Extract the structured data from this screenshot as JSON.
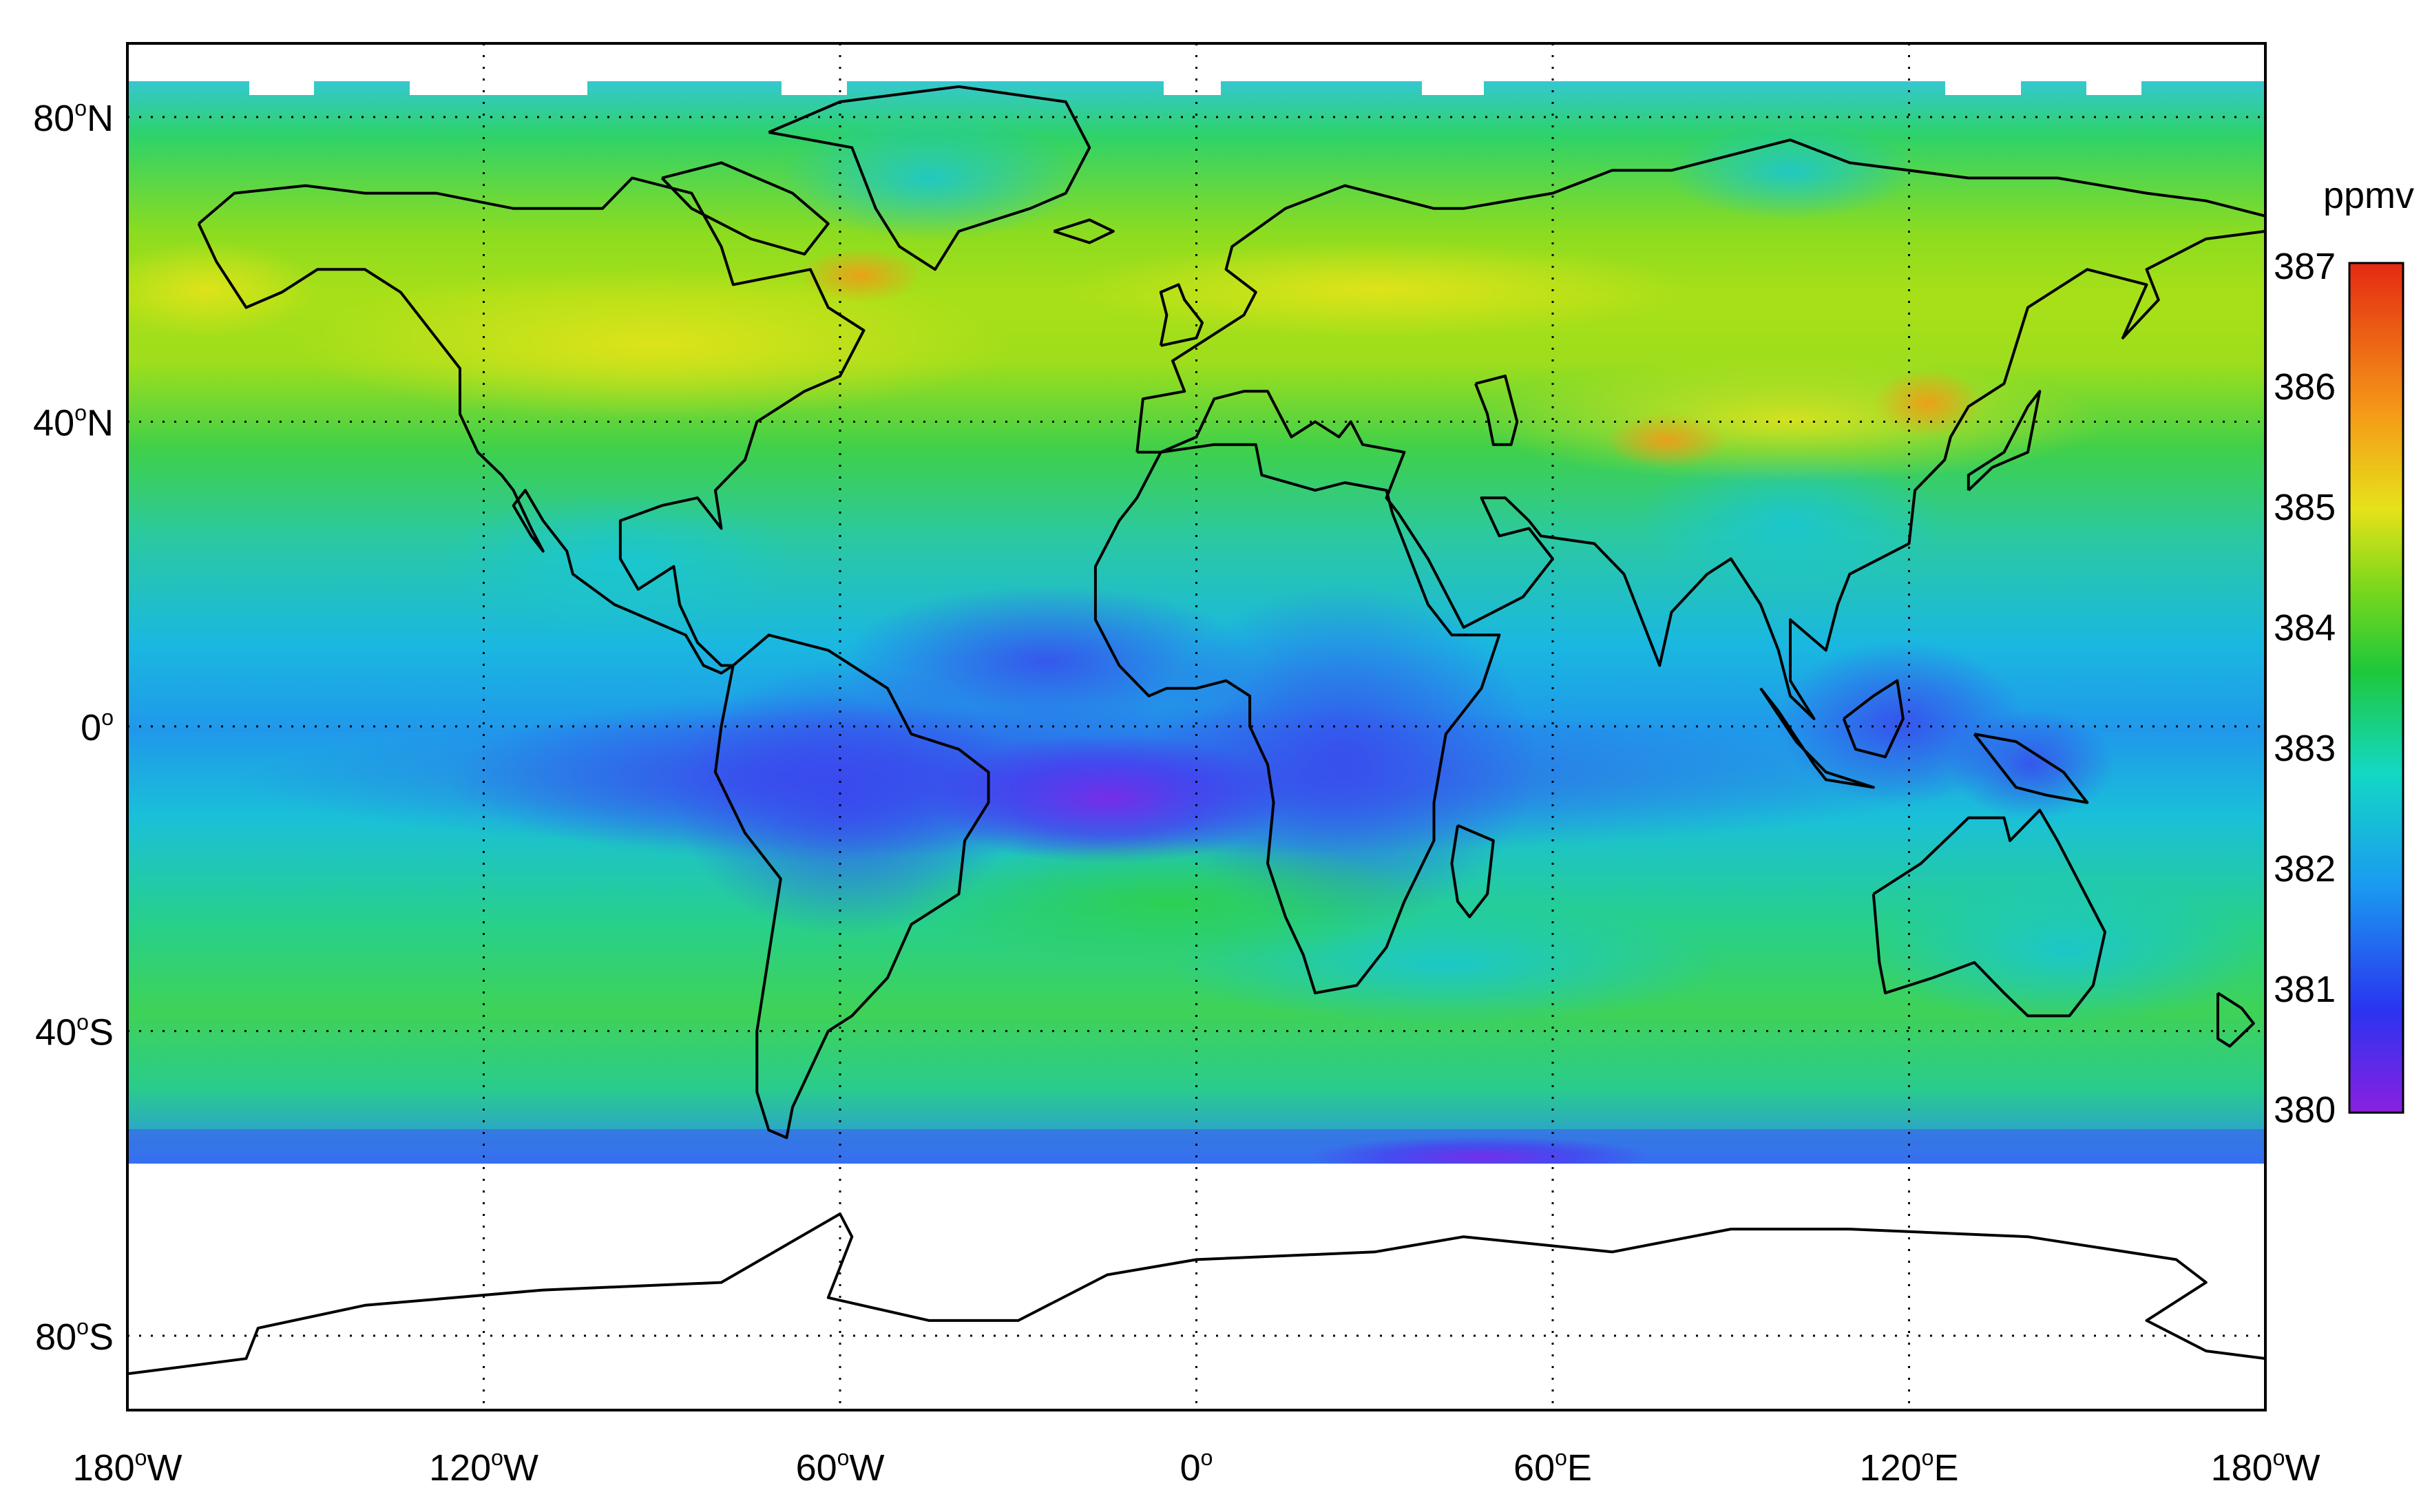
{
  "map": {
    "longitude_labels": [
      {
        "lon": -180,
        "deg": "180",
        "hem": "W"
      },
      {
        "lon": -120,
        "deg": "120",
        "hem": "W"
      },
      {
        "lon": -60,
        "deg": "60",
        "hem": "W"
      },
      {
        "lon": 0,
        "deg": "0",
        "hem": ""
      },
      {
        "lon": 60,
        "deg": "60",
        "hem": "E"
      },
      {
        "lon": 120,
        "deg": "120",
        "hem": "E"
      },
      {
        "lon": 180,
        "deg": "180",
        "hem": "W"
      }
    ],
    "latitude_labels": [
      {
        "lat": 80,
        "deg": "80",
        "hem": "N"
      },
      {
        "lat": 40,
        "deg": "40",
        "hem": "N"
      },
      {
        "lat": 0,
        "deg": "0",
        "hem": ""
      },
      {
        "lat": -40,
        "deg": "40",
        "hem": "S"
      },
      {
        "lat": -80,
        "deg": "80",
        "hem": "S"
      }
    ],
    "degree_symbol": "o",
    "data_latitude_range": [
      -57,
      85
    ],
    "grid": "dotted",
    "colors": {
      "ocean_zonal": "#2fd16a",
      "land_outline": "#000000"
    }
  },
  "colorbar": {
    "unit": "ppmv",
    "ticks": [
      "387",
      "386",
      "385",
      "384",
      "383",
      "382",
      "381",
      "380"
    ],
    "range": [
      380,
      387
    ],
    "colors": [
      "#7a1fe0",
      "#2a3cf0",
      "#1aa8f0",
      "#12d8c8",
      "#1ec83a",
      "#9ae016",
      "#f0e21a",
      "#f7a018",
      "#e82d12"
    ]
  }
}
